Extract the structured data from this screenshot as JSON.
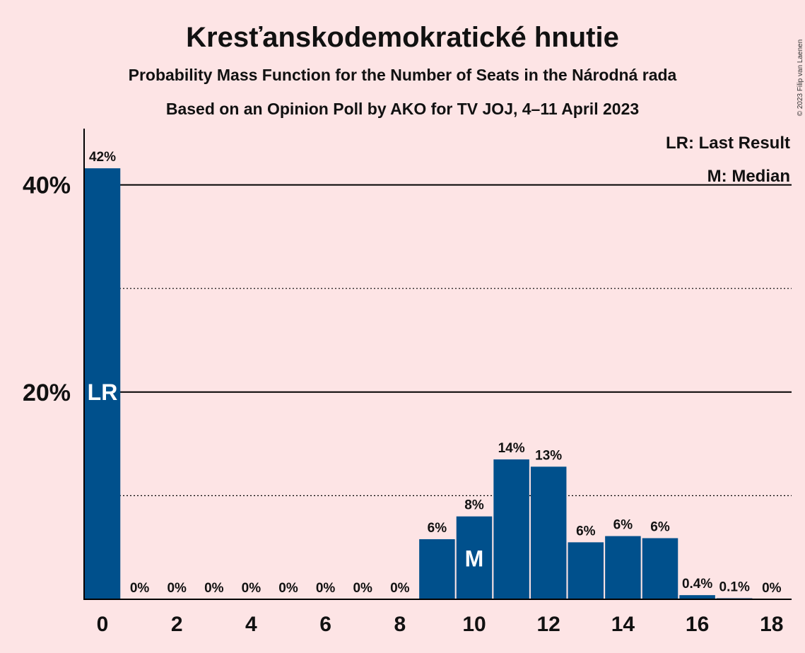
{
  "chart_data": {
    "type": "bar",
    "title": "Kresťanskodemokratické hnutie",
    "subtitle_1": "Probability Mass Function for the Number of Seats in the Národná rada",
    "subtitle_2": "Based on an Opinion Poll by AKO for TV JOJ, 4–11 April 2023",
    "copyright": "© 2023 Filip van Laenen",
    "x": [
      0,
      1,
      2,
      3,
      4,
      5,
      6,
      7,
      8,
      9,
      10,
      11,
      12,
      13,
      14,
      15,
      16,
      17,
      18
    ],
    "values": [
      41.6,
      0,
      0,
      0,
      0,
      0,
      0,
      0,
      0,
      5.8,
      8.0,
      13.5,
      12.8,
      5.5,
      6.1,
      5.9,
      0.4,
      0.1,
      0
    ],
    "labels": [
      "42%",
      "0%",
      "0%",
      "0%",
      "0%",
      "0%",
      "0%",
      "0%",
      "0%",
      "6%",
      "8%",
      "14%",
      "13%",
      "6%",
      "6%",
      "6%",
      "0.4%",
      "0.1%",
      "0%"
    ],
    "x_ticks": [
      0,
      2,
      4,
      6,
      8,
      10,
      12,
      14,
      16,
      18
    ],
    "y_ticks": [
      {
        "value": 20,
        "label": "20%"
      },
      {
        "value": 40,
        "label": "40%"
      }
    ],
    "y_minor_gridlines": [
      10,
      30
    ],
    "ylim": [
      0,
      45.5
    ],
    "xlabel": "",
    "ylabel": "",
    "last_result": {
      "x": 0,
      "mark": "LR"
    },
    "median": {
      "x": 10,
      "mark": "M"
    },
    "legend": {
      "placement": "top-right",
      "entries": [
        "LR: Last Result",
        "M: Median"
      ]
    },
    "colors": {
      "bar": "#00508c",
      "background": "#fde4e5",
      "axis": "#000000"
    }
  }
}
